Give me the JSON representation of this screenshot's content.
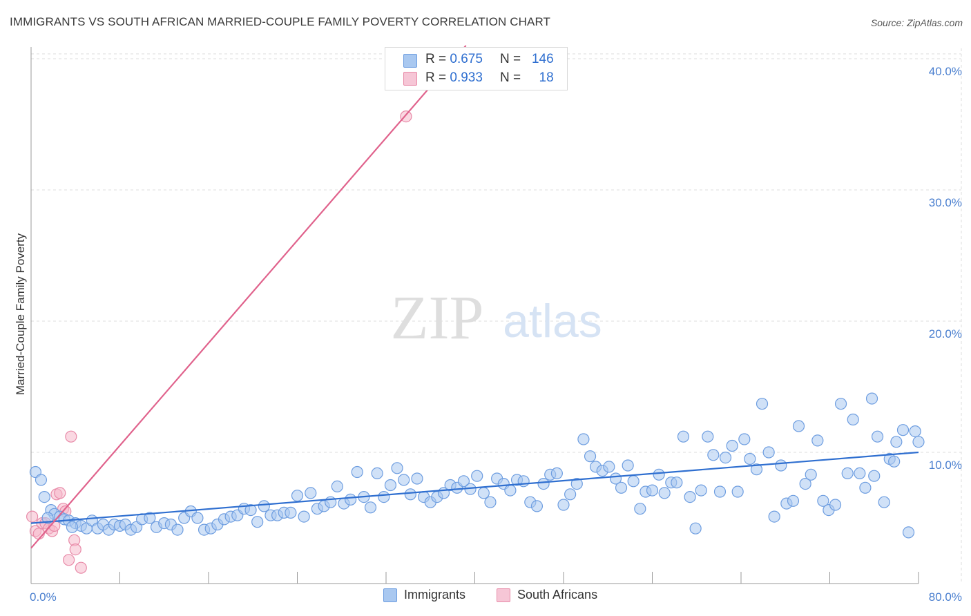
{
  "header": {
    "title": "IMMIGRANTS VS SOUTH AFRICAN MARRIED-COUPLE FAMILY POVERTY CORRELATION CHART",
    "source": "Source: ZipAtlas.com"
  },
  "watermark": {
    "zip": "ZIP",
    "atlas": "atlas"
  },
  "legend_top": {
    "rows": [
      {
        "r_label": "R = ",
        "r_value": "0.675",
        "n_label": "N = ",
        "n_value": "146"
      },
      {
        "r_label": "R = ",
        "r_value": "0.933",
        "n_label": "N = ",
        "n_value": "18"
      }
    ]
  },
  "legend_bottom": {
    "items": [
      "Immigrants",
      "South Africans"
    ]
  },
  "colors": {
    "immigrants_fill": "#a9c8f0",
    "immigrants_stroke": "#6d9de0",
    "immigrants_line": "#2f6fd0",
    "south_africans_fill": "#f6b8cb",
    "south_africans_stroke": "#e88aa8",
    "south_africans_line": "#e0628c",
    "tick_label": "#4a7fcf",
    "grid": "#dcdcdc"
  },
  "chart_data": {
    "type": "scatter",
    "title": "IMMIGRANTS VS SOUTH AFRICAN MARRIED-COUPLE FAMILY POVERTY CORRELATION CHART",
    "xlabel": "",
    "ylabel": "Married-Couple Family Poverty",
    "xlim": [
      0,
      80
    ],
    "ylim": [
      0,
      41
    ],
    "x_tick_labels": [
      "0.0%",
      "80.0%"
    ],
    "y_ticks": [
      10,
      20,
      30,
      40
    ],
    "y_tick_labels": [
      "10.0%",
      "20.0%",
      "30.0%",
      "40.0%"
    ],
    "grid": true,
    "legend_placement": "top-center",
    "series": [
      {
        "name": "Immigrants",
        "r": 0.675,
        "n": 146,
        "trend": {
          "x": [
            0,
            80
          ],
          "y": [
            4.6,
            10.0
          ]
        },
        "points": [
          [
            0.4,
            8.5
          ],
          [
            0.9,
            7.9
          ],
          [
            1.2,
            6.6
          ],
          [
            1.8,
            5.6
          ],
          [
            2.1,
            5.3
          ],
          [
            2.6,
            5.1
          ],
          [
            3.0,
            4.9
          ],
          [
            3.4,
            4.8
          ],
          [
            4.0,
            4.6
          ],
          [
            4.5,
            4.4
          ],
          [
            5.0,
            4.2
          ],
          [
            5.5,
            4.8
          ],
          [
            6.0,
            4.2
          ],
          [
            6.5,
            4.5
          ],
          [
            7.0,
            4.1
          ],
          [
            7.5,
            4.5
          ],
          [
            8.0,
            4.4
          ],
          [
            8.5,
            4.5
          ],
          [
            9.0,
            4.1
          ],
          [
            9.5,
            4.3
          ],
          [
            10.0,
            4.9
          ],
          [
            10.7,
            5.0
          ],
          [
            11.3,
            4.3
          ],
          [
            12.0,
            4.6
          ],
          [
            12.6,
            4.5
          ],
          [
            13.2,
            4.1
          ],
          [
            13.8,
            5.0
          ],
          [
            14.4,
            5.5
          ],
          [
            15.0,
            5.0
          ],
          [
            15.6,
            4.1
          ],
          [
            16.2,
            4.2
          ],
          [
            16.8,
            4.5
          ],
          [
            17.4,
            4.9
          ],
          [
            18.0,
            5.1
          ],
          [
            18.6,
            5.2
          ],
          [
            19.2,
            5.7
          ],
          [
            19.8,
            5.6
          ],
          [
            20.4,
            4.7
          ],
          [
            21.0,
            5.9
          ],
          [
            21.6,
            5.2
          ],
          [
            22.2,
            5.2
          ],
          [
            22.8,
            5.4
          ],
          [
            23.4,
            5.4
          ],
          [
            24.0,
            6.7
          ],
          [
            24.6,
            5.1
          ],
          [
            25.2,
            6.9
          ],
          [
            25.8,
            5.7
          ],
          [
            26.4,
            5.9
          ],
          [
            27.0,
            6.2
          ],
          [
            27.6,
            7.4
          ],
          [
            28.2,
            6.1
          ],
          [
            28.8,
            6.4
          ],
          [
            29.4,
            8.5
          ],
          [
            30.0,
            6.6
          ],
          [
            30.6,
            5.8
          ],
          [
            31.2,
            8.4
          ],
          [
            31.8,
            6.6
          ],
          [
            32.4,
            7.5
          ],
          [
            33.0,
            8.8
          ],
          [
            33.6,
            7.9
          ],
          [
            34.2,
            6.8
          ],
          [
            34.8,
            8.0
          ],
          [
            35.4,
            6.6
          ],
          [
            36.0,
            6.2
          ],
          [
            36.6,
            6.6
          ],
          [
            37.2,
            6.9
          ],
          [
            37.8,
            7.5
          ],
          [
            38.4,
            7.3
          ],
          [
            39.0,
            7.8
          ],
          [
            39.6,
            7.2
          ],
          [
            40.2,
            8.2
          ],
          [
            40.8,
            6.9
          ],
          [
            41.4,
            6.2
          ],
          [
            42.0,
            8.0
          ],
          [
            42.6,
            7.6
          ],
          [
            43.2,
            7.1
          ],
          [
            43.8,
            7.9
          ],
          [
            44.4,
            7.8
          ],
          [
            45.0,
            6.2
          ],
          [
            45.6,
            5.9
          ],
          [
            46.2,
            7.6
          ],
          [
            46.8,
            8.3
          ],
          [
            47.4,
            8.4
          ],
          [
            48.0,
            6.0
          ],
          [
            48.6,
            6.8
          ],
          [
            49.2,
            7.6
          ],
          [
            49.8,
            11.0
          ],
          [
            50.4,
            9.7
          ],
          [
            50.9,
            8.9
          ],
          [
            51.5,
            8.6
          ],
          [
            52.1,
            8.9
          ],
          [
            52.7,
            8.0
          ],
          [
            53.2,
            7.3
          ],
          [
            53.8,
            9.0
          ],
          [
            54.3,
            7.8
          ],
          [
            54.9,
            5.7
          ],
          [
            55.4,
            7.0
          ],
          [
            56.0,
            7.1
          ],
          [
            56.6,
            8.3
          ],
          [
            57.1,
            6.9
          ],
          [
            57.7,
            7.7
          ],
          [
            58.2,
            7.7
          ],
          [
            58.8,
            11.2
          ],
          [
            59.4,
            6.6
          ],
          [
            59.9,
            4.2
          ],
          [
            60.4,
            7.1
          ],
          [
            61.0,
            11.2
          ],
          [
            61.5,
            9.8
          ],
          [
            62.1,
            7.0
          ],
          [
            62.6,
            9.6
          ],
          [
            63.2,
            10.5
          ],
          [
            63.7,
            7.0
          ],
          [
            64.3,
            11.0
          ],
          [
            64.8,
            9.5
          ],
          [
            65.4,
            8.7
          ],
          [
            65.9,
            13.7
          ],
          [
            66.5,
            10.0
          ],
          [
            67.0,
            5.1
          ],
          [
            67.6,
            9.0
          ],
          [
            68.1,
            6.1
          ],
          [
            68.7,
            6.3
          ],
          [
            69.2,
            12.0
          ],
          [
            69.8,
            7.6
          ],
          [
            70.3,
            8.3
          ],
          [
            70.9,
            10.9
          ],
          [
            71.4,
            6.3
          ],
          [
            71.9,
            5.6
          ],
          [
            72.5,
            6.0
          ],
          [
            73.0,
            13.7
          ],
          [
            73.6,
            8.4
          ],
          [
            74.1,
            12.5
          ],
          [
            74.7,
            8.4
          ],
          [
            75.2,
            7.3
          ],
          [
            75.8,
            14.1
          ],
          [
            76.3,
            11.2
          ],
          [
            76.9,
            6.2
          ],
          [
            77.4,
            9.5
          ],
          [
            78.0,
            10.8
          ],
          [
            78.6,
            11.7
          ],
          [
            79.1,
            3.9
          ],
          [
            79.7,
            11.6
          ],
          [
            80.0,
            10.8
          ],
          [
            77.8,
            9.3
          ],
          [
            76.0,
            8.2
          ],
          [
            1.5,
            5.0
          ],
          [
            3.7,
            4.3
          ]
        ]
      },
      {
        "name": "South Africans",
        "r": 0.933,
        "n": 18,
        "trend": {
          "x": [
            0,
            39.2
          ],
          "y": [
            2.7,
            41.0
          ]
        },
        "points": [
          [
            0.1,
            5.1
          ],
          [
            0.4,
            4.0
          ],
          [
            0.7,
            3.8
          ],
          [
            1.0,
            4.6
          ],
          [
            1.3,
            4.6
          ],
          [
            1.6,
            4.2
          ],
          [
            1.9,
            4.0
          ],
          [
            2.1,
            4.4
          ],
          [
            2.3,
            6.8
          ],
          [
            2.6,
            6.9
          ],
          [
            2.9,
            5.7
          ],
          [
            3.1,
            5.5
          ],
          [
            3.4,
            1.8
          ],
          [
            3.6,
            11.2
          ],
          [
            3.9,
            3.3
          ],
          [
            4.0,
            2.6
          ],
          [
            4.5,
            1.2
          ],
          [
            33.8,
            35.6
          ]
        ]
      }
    ]
  }
}
